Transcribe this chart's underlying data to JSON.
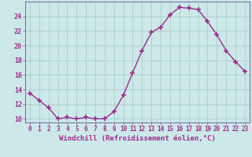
{
  "x": [
    0,
    1,
    2,
    3,
    4,
    5,
    6,
    7,
    8,
    9,
    10,
    11,
    12,
    13,
    14,
    15,
    16,
    17,
    18,
    19,
    20,
    21,
    22,
    23
  ],
  "y": [
    13.5,
    12.5,
    11.5,
    10.0,
    10.2,
    10.0,
    10.2,
    10.0,
    10.0,
    11.0,
    13.2,
    16.3,
    19.3,
    21.8,
    22.5,
    24.2,
    25.2,
    25.1,
    24.9,
    23.3,
    21.5,
    19.3,
    17.8,
    16.5
  ],
  "line_color": "#9b2d8e",
  "marker": "+",
  "marker_size": 4,
  "marker_linewidth": 1.2,
  "bg_color": "#cce8e8",
  "grid_color": "#aacccc",
  "xlabel": "Windchill (Refroidissement éolien,°C)",
  "xlabel_color": "#9b2d8e",
  "tick_color": "#9b2d8e",
  "spine_color": "#7777aa",
  "ylim": [
    9.5,
    26.0
  ],
  "xlim": [
    -0.5,
    23.5
  ],
  "yticks": [
    10,
    12,
    14,
    16,
    18,
    20,
    22,
    24
  ],
  "xticks": [
    0,
    1,
    2,
    3,
    4,
    5,
    6,
    7,
    8,
    9,
    10,
    11,
    12,
    13,
    14,
    15,
    16,
    17,
    18,
    19,
    20,
    21,
    22,
    23
  ],
  "tick_fontsize": 5.5,
  "xlabel_fontsize": 6.5
}
